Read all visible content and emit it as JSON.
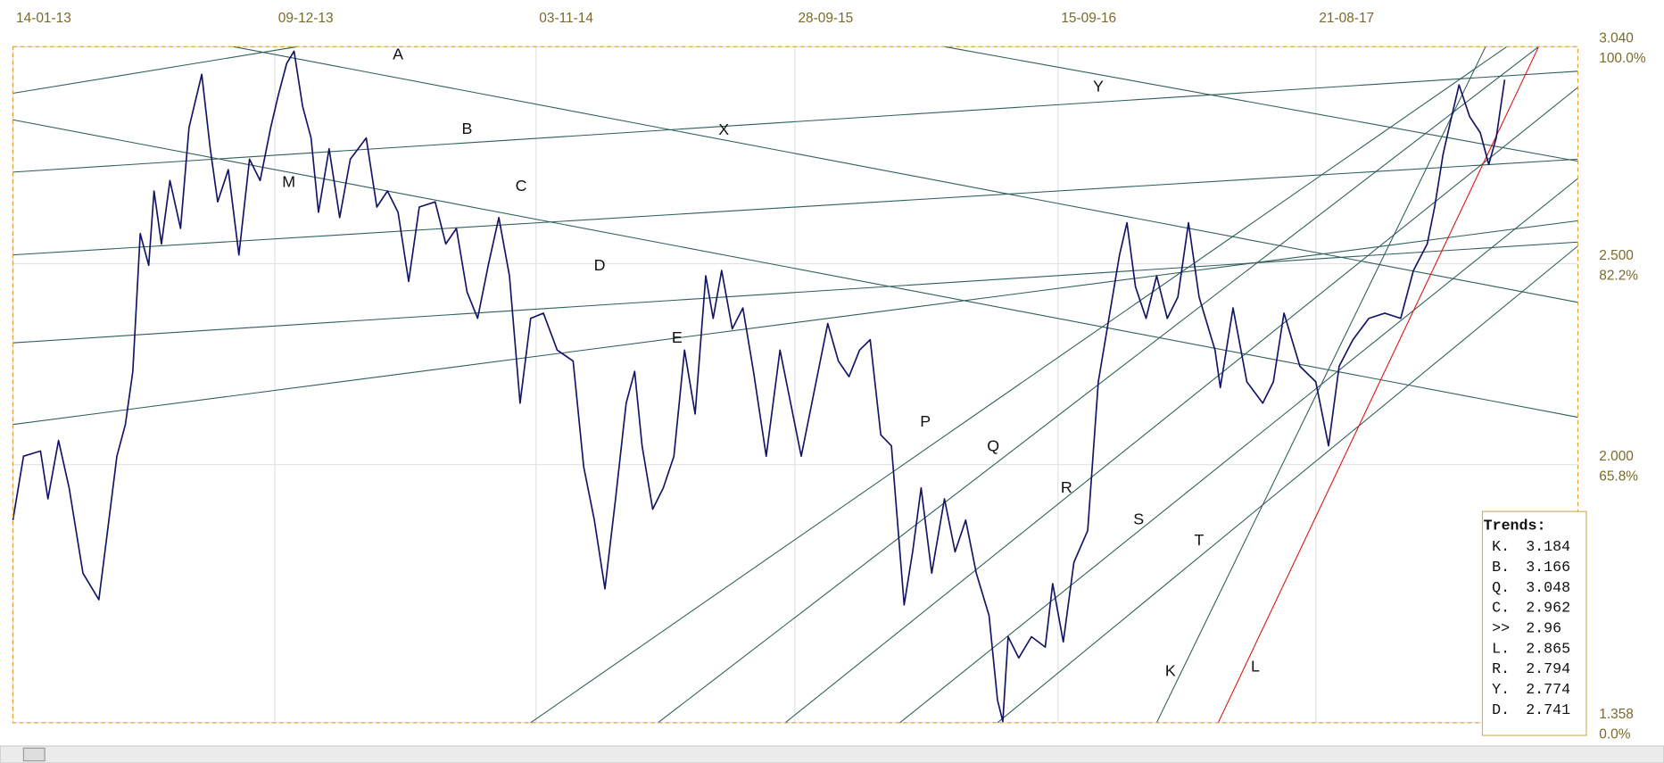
{
  "chart_data": {
    "type": "line",
    "color": "#141466",
    "trend_color": "#2e5e5a",
    "grid": true,
    "xlim": [
      0,
      1475
    ],
    "xticks": [
      {
        "value": 0,
        "label": "14-01-13"
      },
      {
        "value": 247,
        "label": "09-12-13"
      },
      {
        "value": 493,
        "label": "03-11-14"
      },
      {
        "value": 737,
        "label": "28-09-15"
      },
      {
        "value": 985,
        "label": "15-09-16"
      },
      {
        "value": 1228,
        "label": "21-08-17"
      }
    ],
    "ylim": [
      1.358,
      3.04
    ],
    "yticks": [
      {
        "value": 3.04,
        "label": "3.040"
      },
      {
        "value": 2.5,
        "label": "2.500"
      },
      {
        "value": 2.0,
        "label": "2.000"
      },
      {
        "value": 1.358,
        "label": "1.358"
      }
    ],
    "y2ticks": [
      {
        "value": 100,
        "label": "100.0%"
      },
      {
        "value": 82.2,
        "label": "82.2%"
      },
      {
        "value": 65.8,
        "label": "65.8%"
      },
      {
        "value": 0,
        "label": "0.0%"
      }
    ],
    "x": [
      0,
      10,
      26,
      33,
      43,
      53,
      66,
      81,
      88,
      98,
      106,
      113,
      120,
      128,
      133,
      140,
      148,
      158,
      166,
      178,
      186,
      193,
      203,
      213,
      223,
      233,
      243,
      250,
      258,
      265,
      273,
      281,
      288,
      298,
      308,
      318,
      333,
      343,
      353,
      363,
      373,
      383,
      398,
      408,
      418,
      428,
      438,
      448,
      458,
      468,
      478,
      488,
      500,
      513,
      528,
      538,
      548,
      558,
      568,
      578,
      586,
      593,
      603,
      613,
      623,
      633,
      643,
      653,
      660,
      668,
      678,
      688,
      698,
      710,
      723,
      733,
      743,
      753,
      768,
      778,
      788,
      798,
      808,
      818,
      828,
      840,
      848,
      856,
      866,
      878,
      888,
      898,
      908,
      920,
      928,
      933,
      938,
      948,
      960,
      973,
      980,
      990,
      1000,
      1013,
      1023,
      1033,
      1043,
      1050,
      1058,
      1068,
      1078,
      1088,
      1098,
      1108,
      1118,
      1133,
      1138,
      1150,
      1163,
      1178,
      1188,
      1198,
      1213,
      1228,
      1240,
      1250,
      1263,
      1278,
      1293,
      1308,
      1320,
      1333,
      1340,
      1348,
      1356,
      1363,
      1373,
      1383,
      1391,
      1398,
      1406
    ],
    "values": [
      1.862,
      2.021,
      2.034,
      1.915,
      2.06,
      1.942,
      1.73,
      1.664,
      1.81,
      2.021,
      2.1,
      2.232,
      2.575,
      2.496,
      2.681,
      2.549,
      2.707,
      2.588,
      2.839,
      2.971,
      2.786,
      2.654,
      2.734,
      2.522,
      2.76,
      2.707,
      2.839,
      2.918,
      2.998,
      3.029,
      2.892,
      2.813,
      2.628,
      2.786,
      2.615,
      2.76,
      2.813,
      2.641,
      2.681,
      2.628,
      2.456,
      2.641,
      2.654,
      2.549,
      2.588,
      2.43,
      2.364,
      2.496,
      2.615,
      2.47,
      2.153,
      2.364,
      2.377,
      2.285,
      2.258,
      1.994,
      1.862,
      1.691,
      1.915,
      2.153,
      2.232,
      2.047,
      1.889,
      1.942,
      2.021,
      2.285,
      2.126,
      2.47,
      2.364,
      2.483,
      2.338,
      2.39,
      2.232,
      2.021,
      2.285,
      2.153,
      2.021,
      2.153,
      2.351,
      2.258,
      2.219,
      2.285,
      2.311,
      2.074,
      2.047,
      1.651,
      1.783,
      1.942,
      1.73,
      1.915,
      1.783,
      1.862,
      1.73,
      1.625,
      1.414,
      1.361,
      1.572,
      1.519,
      1.572,
      1.546,
      1.704,
      1.559,
      1.757,
      1.836,
      2.206,
      2.364,
      2.522,
      2.602,
      2.443,
      2.364,
      2.47,
      2.364,
      2.417,
      2.602,
      2.417,
      2.285,
      2.192,
      2.39,
      2.206,
      2.153,
      2.206,
      2.377,
      2.245,
      2.206,
      2.047,
      2.245,
      2.311,
      2.364,
      2.377,
      2.364,
      2.483,
      2.549,
      2.641,
      2.773,
      2.866,
      2.945,
      2.866,
      2.826,
      2.747,
      2.813,
      2.958
    ],
    "trendlines": [
      {
        "name": "A",
        "x": [
          0,
          268
        ],
        "values": [
          2.924,
          3.04
        ]
      },
      {
        "name": "B",
        "x": [
          0,
          1475
        ],
        "values": [
          2.728,
          2.979
        ]
      },
      {
        "name": "C",
        "x": [
          0,
          1475
        ],
        "values": [
          2.522,
          2.76
        ]
      },
      {
        "name": "D",
        "x": [
          0,
          1475
        ],
        "values": [
          2.303,
          2.554
        ]
      },
      {
        "name": "E",
        "x": [
          0,
          1475
        ],
        "values": [
          2.1,
          2.607
        ]
      },
      {
        "name": "M",
        "x": [
          0,
          1475
        ],
        "values": [
          2.858,
          2.118
        ]
      },
      {
        "name": "X",
        "x": [
          208,
          1475
        ],
        "values": [
          3.04,
          2.404
        ]
      },
      {
        "name": "Y",
        "x": [
          878,
          1475
        ],
        "values": [
          3.04,
          2.755
        ]
      },
      {
        "name": "P",
        "x": [
          488,
          1408
        ],
        "values": [
          1.358,
          3.04
        ]
      },
      {
        "name": "Q",
        "x": [
          608,
          1438
        ],
        "values": [
          1.358,
          3.04
        ]
      },
      {
        "name": "R",
        "x": [
          728,
          1475
        ],
        "values": [
          1.358,
          2.939
        ]
      },
      {
        "name": "S",
        "x": [
          836,
          1475
        ],
        "values": [
          1.358,
          2.712
        ]
      },
      {
        "name": "T",
        "x": [
          928,
          1475
        ],
        "values": [
          1.358,
          2.544
        ]
      },
      {
        "name": "K",
        "x": [
          1078,
          1388
        ],
        "values": [
          1.358,
          3.04
        ]
      },
      {
        "name": "L",
        "x": [
          1136,
          1438
        ],
        "values": [
          1.358,
          3.04
        ],
        "color": "#e01010"
      }
    ],
    "trends_box": {
      "title": "Trends:",
      "rows": [
        {
          "label": "K.",
          "value": 3.184
        },
        {
          "label": "B.",
          "value": 3.166
        },
        {
          "label": "Q.",
          "value": 3.048
        },
        {
          "label": "C.",
          "value": 2.962
        },
        {
          "label": ">>",
          "value": 2.96
        },
        {
          "label": "L.",
          "value": 2.865,
          "color": "#e01010"
        },
        {
          "label": "R.",
          "value": 2.794
        },
        {
          "label": "Y.",
          "value": 2.774
        },
        {
          "label": "D.",
          "value": 2.741
        }
      ]
    }
  }
}
